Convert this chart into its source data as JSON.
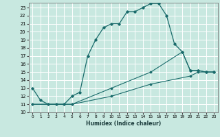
{
  "xlabel": "Humidex (Indice chaleur)",
  "background_color": "#c8e8e0",
  "grid_color": "#ffffff",
  "line_color": "#1a6b6b",
  "xlim": [
    -0.5,
    23.5
  ],
  "ylim": [
    10,
    23.6
  ],
  "xticks": [
    0,
    1,
    2,
    3,
    4,
    5,
    6,
    7,
    8,
    9,
    10,
    11,
    12,
    13,
    14,
    15,
    16,
    17,
    18,
    19,
    20,
    21,
    22,
    23
  ],
  "yticks": [
    10,
    11,
    12,
    13,
    14,
    15,
    16,
    17,
    18,
    19,
    20,
    21,
    22,
    23
  ],
  "series1_x": [
    0,
    1,
    2,
    3,
    4,
    5,
    6,
    7,
    8,
    9,
    10,
    11,
    12,
    13,
    14,
    15,
    16,
    17,
    18,
    19,
    20,
    21,
    22,
    23
  ],
  "series1_y": [
    13,
    11.5,
    11,
    11,
    11,
    12,
    12.5,
    17,
    19,
    20.5,
    21,
    21,
    22.5,
    22.5,
    23,
    23.5,
    23.5,
    22,
    18.5,
    17.5,
    15.2,
    15.2,
    15,
    15
  ],
  "series2_x": [
    0,
    5,
    10,
    15,
    20,
    21,
    22,
    23
  ],
  "series2_y": [
    11,
    11,
    12,
    13.5,
    14.5,
    15,
    15,
    15
  ],
  "series3_x": [
    0,
    5,
    10,
    15,
    19,
    20,
    21,
    22,
    23
  ],
  "series3_y": [
    11,
    11,
    13,
    15,
    17.5,
    15.2,
    15.2,
    15,
    15
  ]
}
